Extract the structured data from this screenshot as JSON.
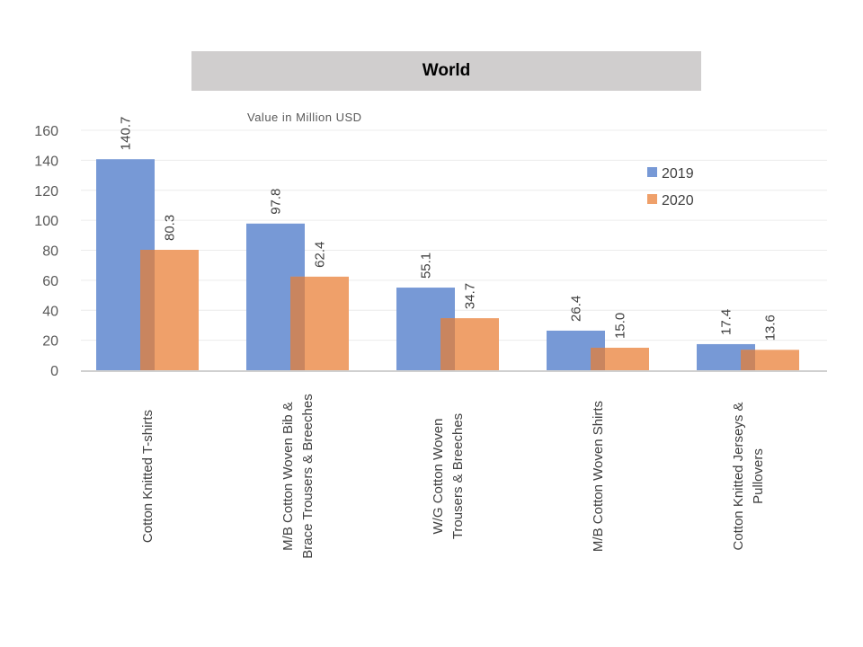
{
  "chart_data": {
    "type": "bar",
    "title": "World",
    "subtitle": "Value in Million USD",
    "categories": [
      [
        "Cotton Knitted  T-shirts"
      ],
      [
        "M/B Cotton Woven Bib &",
        "Brace Trousers & Breeches"
      ],
      [
        "W/G Cotton Woven",
        "Trousers & Breeches"
      ],
      [
        "M/B Cotton Woven  Shirts"
      ],
      [
        "Cotton Knitted  Jerseys &",
        "Pullovers"
      ]
    ],
    "series": [
      {
        "name": "2019",
        "color": "#7799d6",
        "values": [
          140.7,
          97.8,
          55.1,
          26.4,
          17.4
        ],
        "labels": [
          "140.7",
          "97.8",
          "55.1",
          "26.4",
          "17.4"
        ]
      },
      {
        "name": "2020",
        "color": "#efa06a",
        "values": [
          80.3,
          62.4,
          34.7,
          15.0,
          13.6
        ],
        "labels": [
          "80.3",
          "62.4",
          "34.7",
          "15.0",
          "13.6"
        ]
      }
    ],
    "overlap_color": "#c9855f",
    "ylim": [
      0,
      160
    ],
    "yticks": [
      "0",
      "20",
      "40",
      "60",
      "80",
      "100",
      "120",
      "140",
      "160"
    ],
    "legend": "top-right",
    "grid": true
  }
}
